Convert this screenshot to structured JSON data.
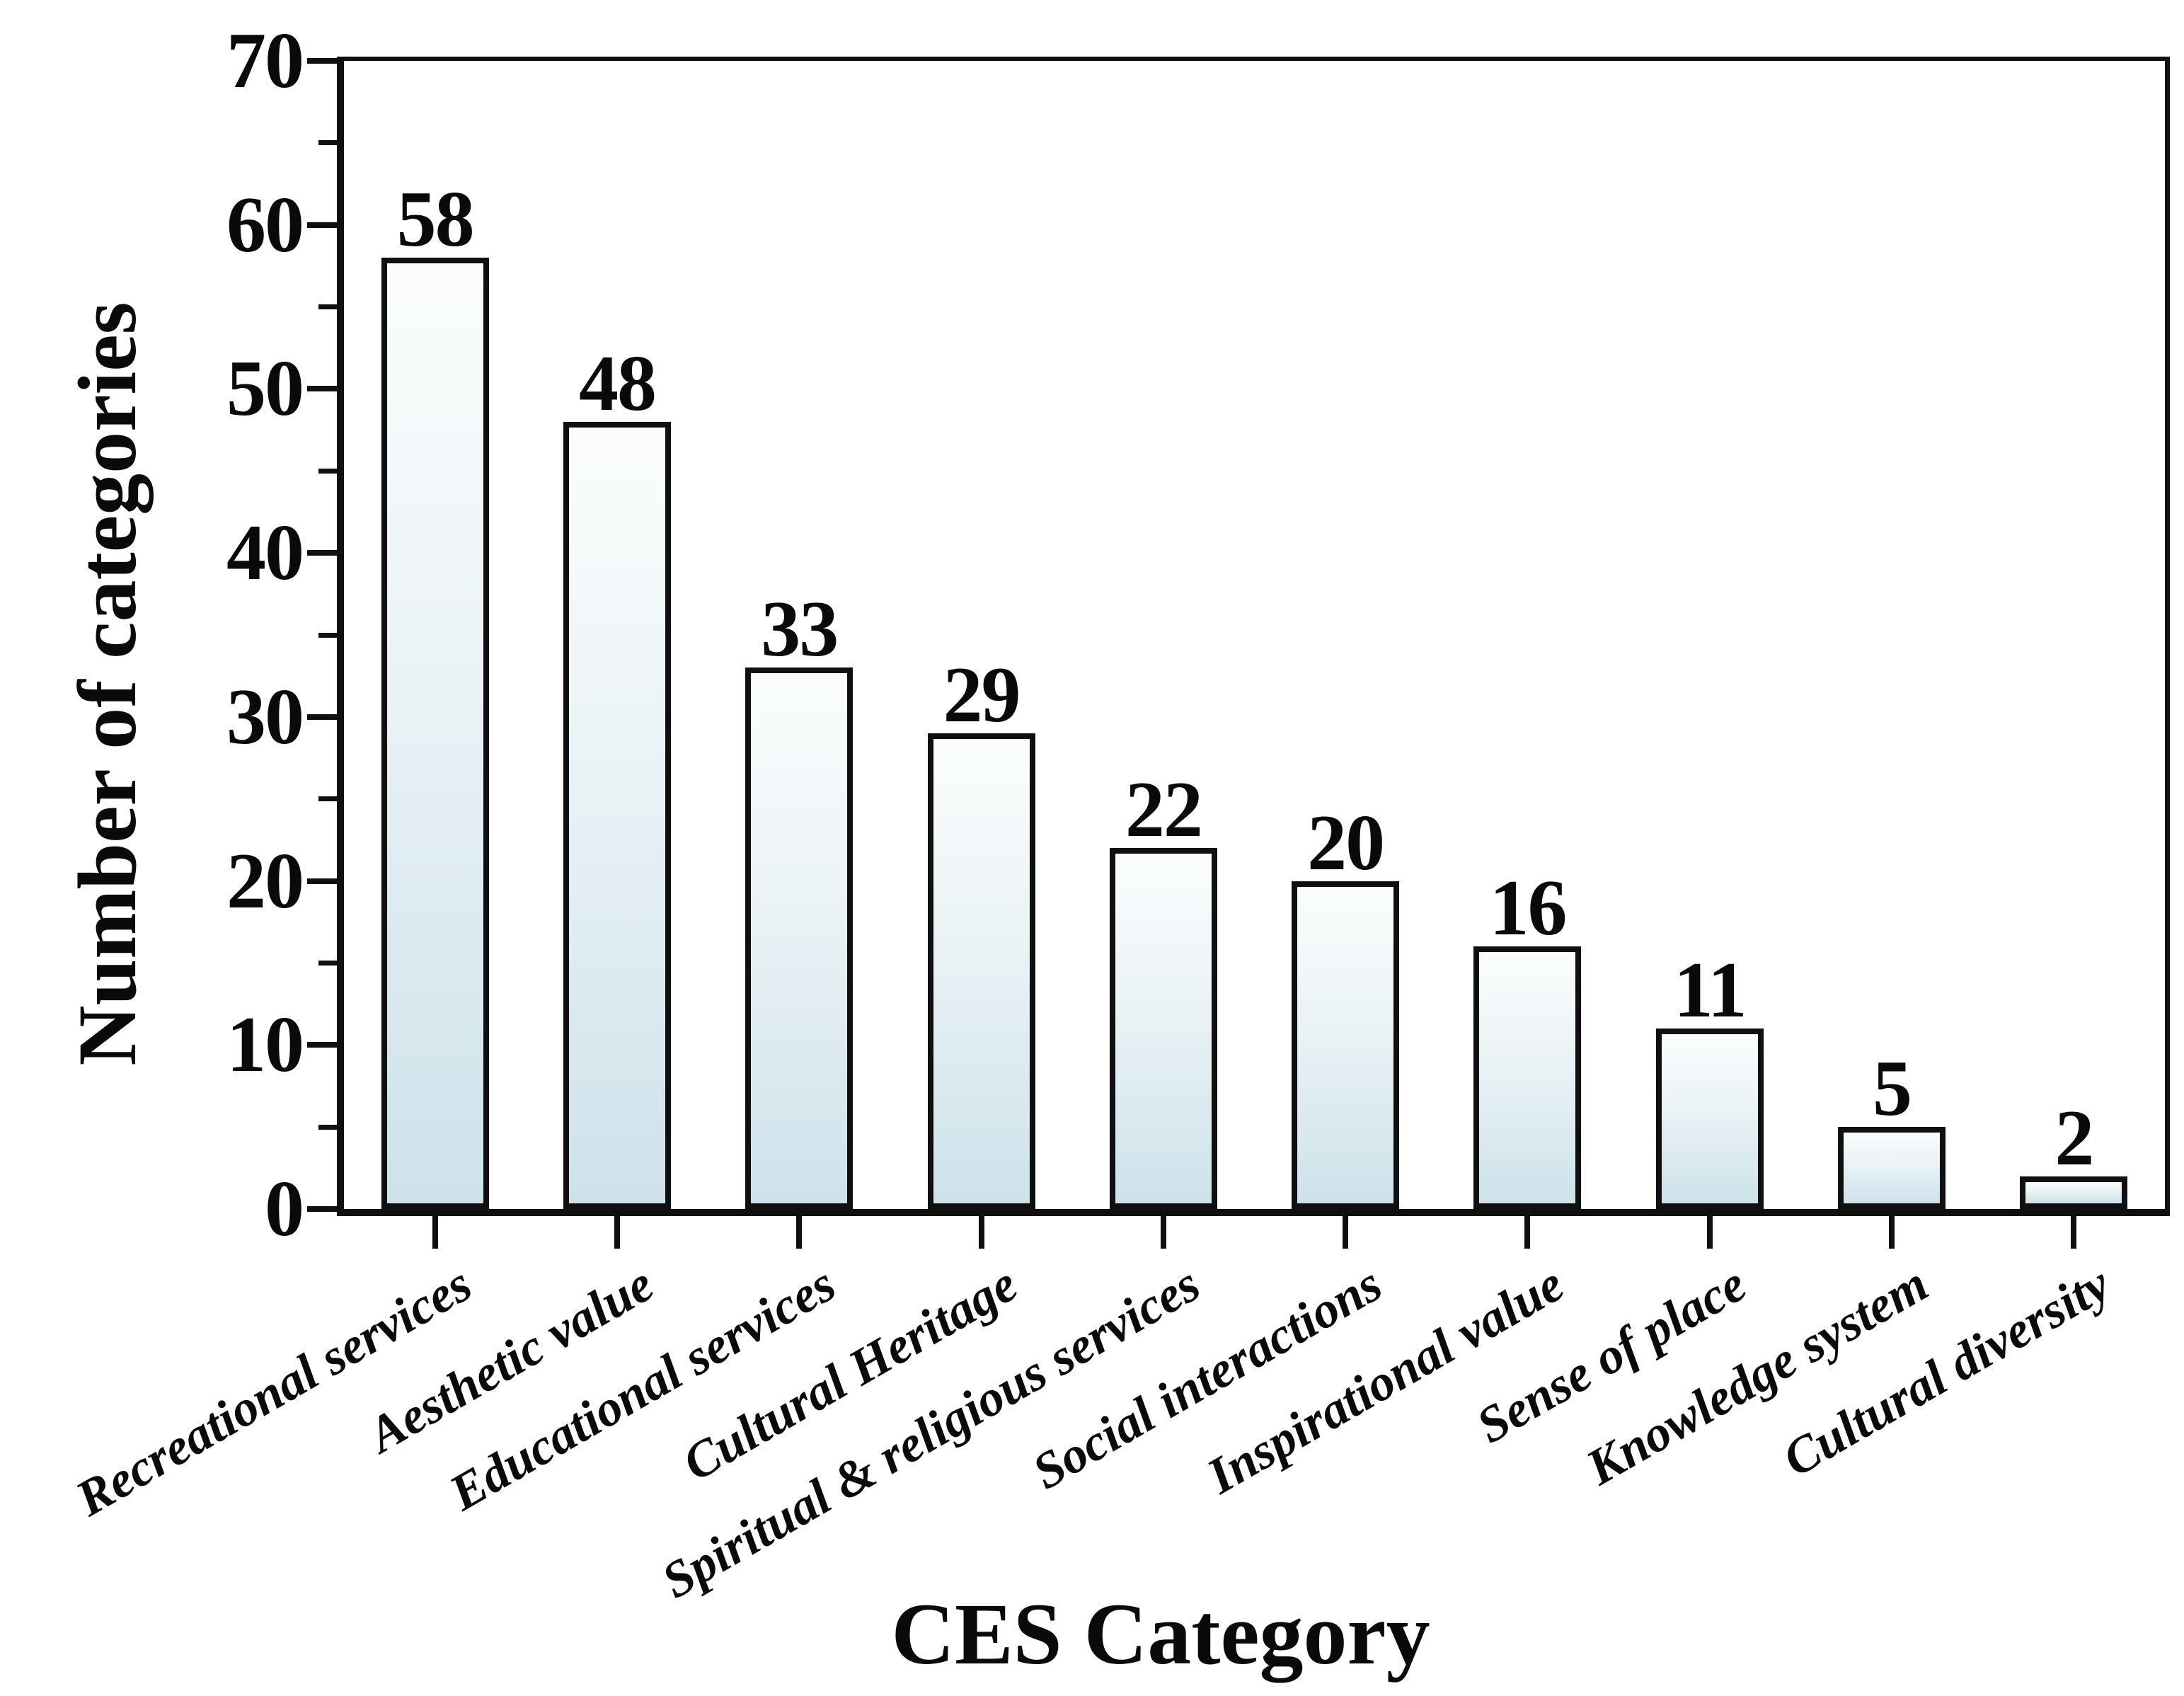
{
  "figure": {
    "background": "#ffffff"
  },
  "chart_data": {
    "type": "bar",
    "title": "",
    "xlabel": "CES Category",
    "ylabel": "Number of categories",
    "categories": [
      "Recreational services",
      "Aesthetic value",
      "Educational services",
      "Cultural Heritage",
      "Spiritual & religious services",
      "Social interactions",
      "Inspirational value",
      "Sense of place",
      "Knowledge system",
      "Cultural diversity"
    ],
    "values": [
      58,
      48,
      33,
      29,
      22,
      20,
      16,
      11,
      5,
      2
    ],
    "ylim": [
      0,
      70
    ],
    "y_major_ticks": [
      0,
      10,
      20,
      30,
      40,
      50,
      60,
      70
    ],
    "y_minor_ticks": [
      5,
      15,
      25,
      35,
      45,
      55,
      65
    ],
    "grid": false,
    "legend": "none",
    "bar_label_position": "above",
    "x_label_rotation_deg": -30,
    "colors": {
      "bar_gradient_top": "#fbfdfd",
      "bar_gradient_mid": "#eaf2f5",
      "bar_gradient_bottom": "#cde2ea",
      "bar_border": "#101010",
      "axis": "#101010",
      "text": "#0a0a0a",
      "background": "#ffffff"
    }
  }
}
